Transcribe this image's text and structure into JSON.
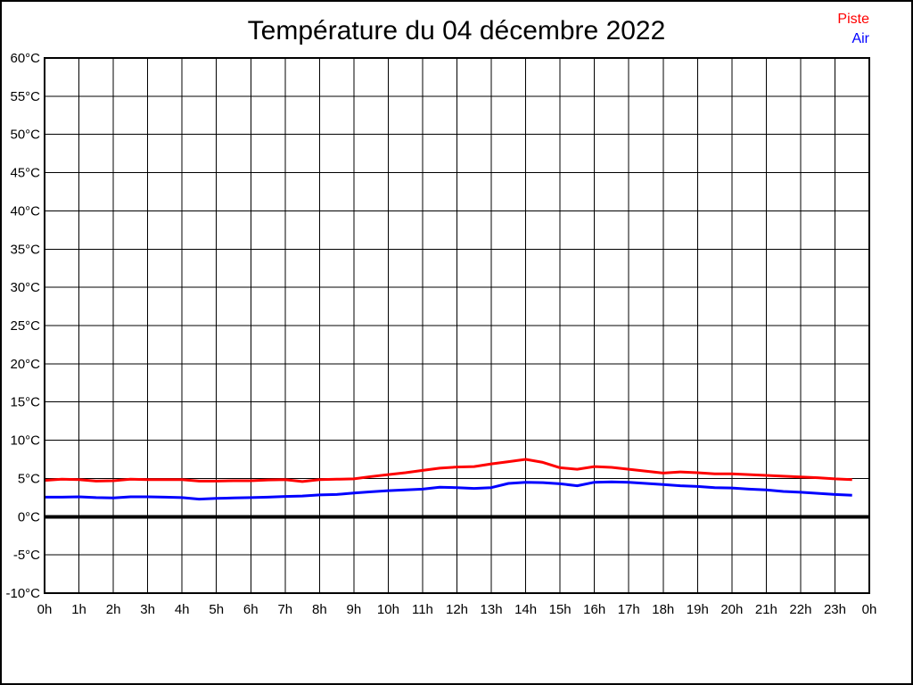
{
  "chart_data": {
    "type": "line",
    "title": "Température du 04 décembre 2022",
    "xlabel": "",
    "ylabel": "",
    "xlim": [
      0,
      24
    ],
    "ylim": [
      -10,
      60
    ],
    "grid": true,
    "grid_color": "#000000",
    "axis_color": "#000000",
    "legend_position": "top-right",
    "x_tick_values": [
      0,
      1,
      2,
      3,
      4,
      5,
      6,
      7,
      8,
      9,
      10,
      11,
      12,
      13,
      14,
      15,
      16,
      17,
      18,
      19,
      20,
      21,
      22,
      23,
      24
    ],
    "x_tick_labels": [
      "0h",
      "1h",
      "2h",
      "3h",
      "4h",
      "5h",
      "6h",
      "7h",
      "8h",
      "9h",
      "10h",
      "11h",
      "12h",
      "13h",
      "14h",
      "15h",
      "16h",
      "17h",
      "18h",
      "19h",
      "20h",
      "21h",
      "22h",
      "23h",
      "0h"
    ],
    "y_tick_values": [
      60,
      55,
      50,
      45,
      40,
      35,
      30,
      25,
      20,
      15,
      10,
      5,
      0,
      -5,
      -10
    ],
    "y_tick_labels": [
      "60°C",
      "55°C",
      "50°C",
      "45°C",
      "40°C",
      "35°C",
      "30°C",
      "25°C",
      "20°C",
      "15°C",
      "10°C",
      "5°C",
      "0°C",
      "-5°C",
      "-10°C"
    ],
    "zero_line": {
      "value": 0,
      "color": "#000000"
    },
    "x_start": 0,
    "x_step": 0.5,
    "series": [
      {
        "name": "Piste",
        "color": "#ff0000",
        "values": [
          4.75,
          4.9,
          4.85,
          4.65,
          4.7,
          4.9,
          4.85,
          4.85,
          4.85,
          4.65,
          4.65,
          4.7,
          4.7,
          4.8,
          4.85,
          4.6,
          4.85,
          4.9,
          4.95,
          5.25,
          5.5,
          5.75,
          6.05,
          6.35,
          6.5,
          6.55,
          6.9,
          7.2,
          7.5,
          7.1,
          6.4,
          6.2,
          6.55,
          6.45,
          6.2,
          5.95,
          5.7,
          5.85,
          5.75,
          5.6,
          5.6,
          5.5,
          5.4,
          5.3,
          5.2,
          5.1,
          4.95,
          4.85
        ]
      },
      {
        "name": "Air",
        "color": "#0000ff",
        "values": [
          2.55,
          2.55,
          2.6,
          2.5,
          2.45,
          2.6,
          2.6,
          2.55,
          2.5,
          2.3,
          2.4,
          2.45,
          2.5,
          2.55,
          2.65,
          2.7,
          2.85,
          2.9,
          3.1,
          3.25,
          3.4,
          3.5,
          3.6,
          3.85,
          3.8,
          3.7,
          3.8,
          4.35,
          4.5,
          4.45,
          4.3,
          4.05,
          4.5,
          4.55,
          4.5,
          4.35,
          4.2,
          4.05,
          3.95,
          3.8,
          3.75,
          3.6,
          3.5,
          3.3,
          3.2,
          3.05,
          2.9,
          2.8
        ]
      }
    ]
  }
}
